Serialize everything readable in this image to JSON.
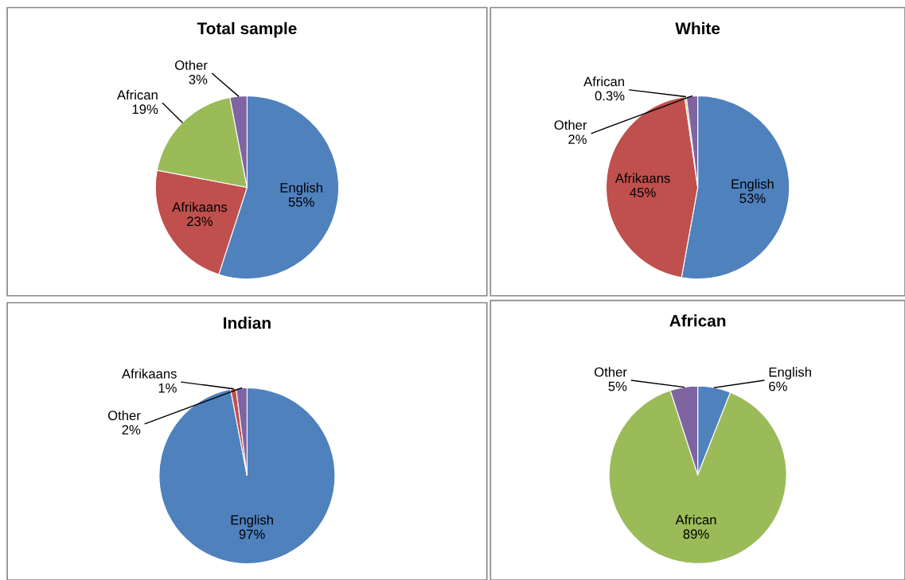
{
  "chart_data": [
    {
      "type": "pie",
      "title": "Total sample",
      "categories": [
        "English",
        "Afrikaans",
        "African",
        "Other"
      ],
      "values": [
        55,
        23,
        19,
        3
      ],
      "value_labels": [
        "55%",
        "23%",
        "19%",
        "3%"
      ],
      "colors": [
        "#4f81bd",
        "#c0504d",
        "#9bbb59",
        "#8064a2"
      ]
    },
    {
      "type": "pie",
      "title": "White",
      "categories": [
        "English",
        "Afrikaans",
        "African",
        "Other"
      ],
      "values": [
        53,
        45,
        0.3,
        2
      ],
      "value_labels": [
        "53%",
        "45%",
        "0.3%",
        "2%"
      ],
      "colors": [
        "#4f81bd",
        "#c0504d",
        "#9bbb59",
        "#8064a2"
      ]
    },
    {
      "type": "pie",
      "title": "Indian",
      "categories": [
        "English",
        "Afrikaans",
        "Other"
      ],
      "values": [
        97,
        1,
        2
      ],
      "value_labels": [
        "97%",
        "1%",
        "2%"
      ],
      "colors": [
        "#4f81bd",
        "#c0504d",
        "#8064a2"
      ]
    },
    {
      "type": "pie",
      "title": "African",
      "categories": [
        "English",
        "African",
        "Other"
      ],
      "values": [
        6,
        89,
        5
      ],
      "value_labels": [
        "6%",
        "89%",
        "5%"
      ],
      "colors": [
        "#4f81bd",
        "#9bbb59",
        "#8064a2"
      ]
    }
  ]
}
